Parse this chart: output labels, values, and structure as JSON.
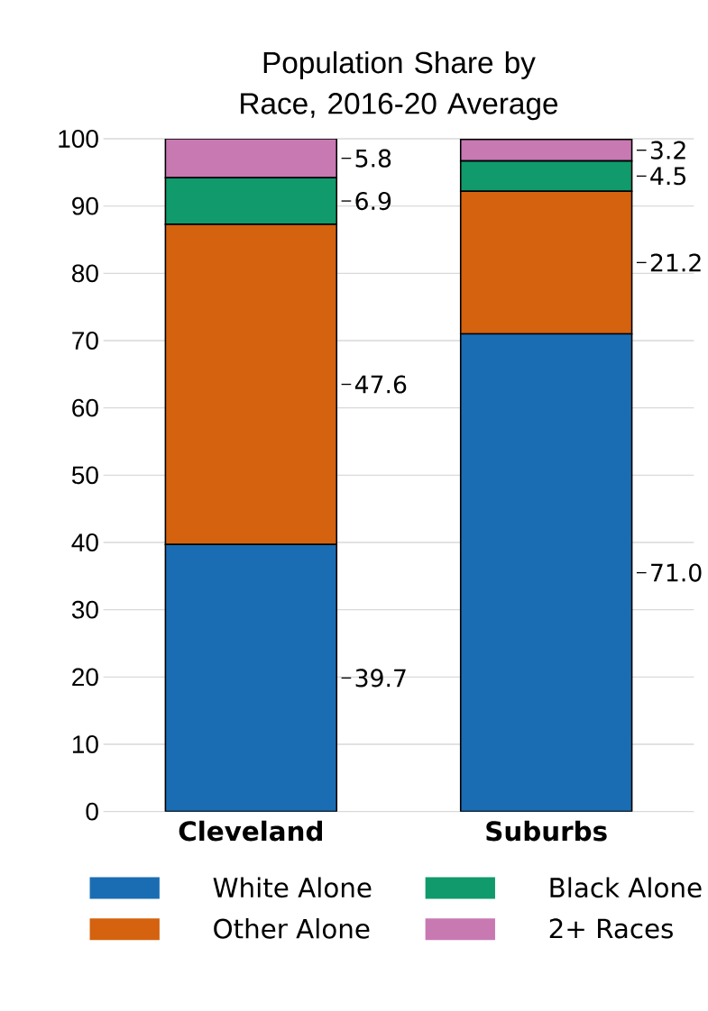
{
  "chart_data": {
    "type": "bar",
    "title": "Population Share by Race, 2016-20 Average",
    "categories": [
      "Cleveland",
      "Suburbs"
    ],
    "stacked": true,
    "series": [
      {
        "name": "White Alone",
        "color": "#1b6db3",
        "values": [
          39.7,
          71.0
        ],
        "value_labels": [
          "39.7",
          "71.0"
        ]
      },
      {
        "name": "Other Alone",
        "color": "#d4620f",
        "values": [
          47.6,
          21.2
        ],
        "value_labels": [
          "47.6",
          "21.2"
        ]
      },
      {
        "name": "Black Alone",
        "color": "#119a6c",
        "values": [
          6.9,
          4.5
        ],
        "value_labels": [
          "6.9",
          "4.5"
        ]
      },
      {
        "name": "2+ Races",
        "color": "#c879b2",
        "values": [
          5.8,
          3.2
        ],
        "value_labels": [
          "5.8",
          "3.2"
        ]
      }
    ],
    "ylim": [
      0,
      100
    ],
    "yticks": [
      0,
      10,
      20,
      30,
      40,
      50,
      60,
      70,
      80,
      90,
      100
    ],
    "grid": "y",
    "legend": "bottom"
  }
}
